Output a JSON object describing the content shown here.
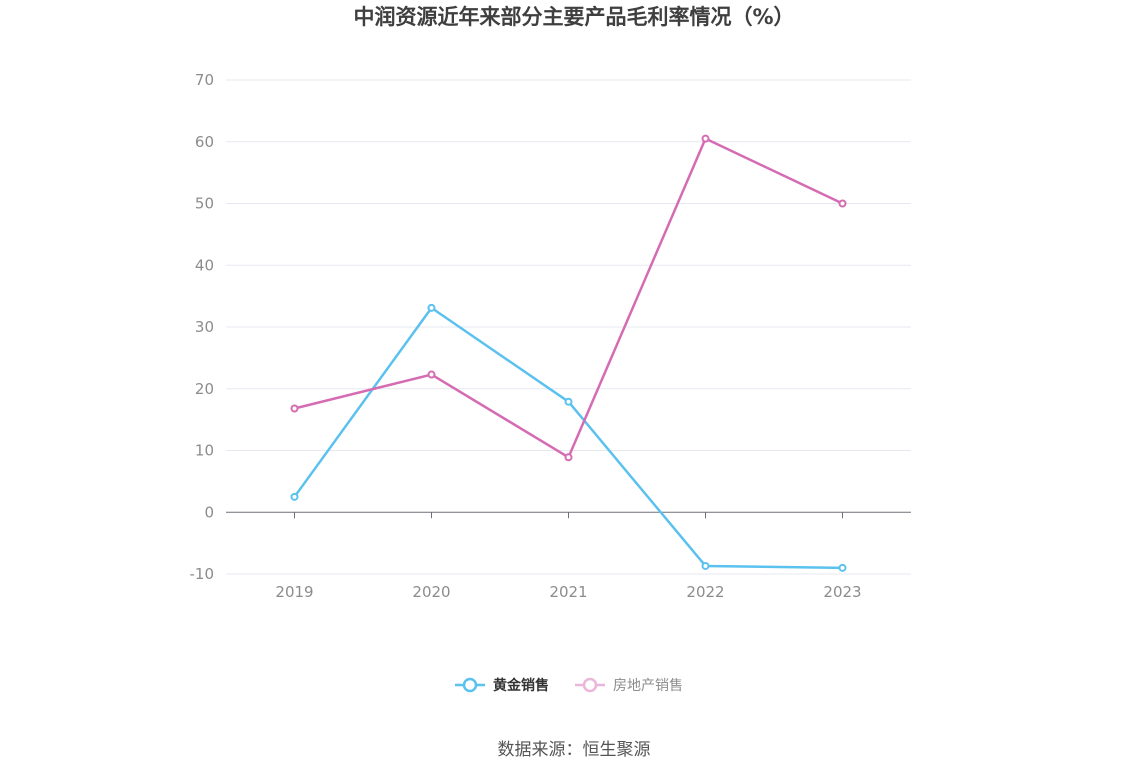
{
  "chart_data": {
    "type": "line",
    "title": "中润资源近年来部分主要产品毛利率情况（%）",
    "categories": [
      "2019",
      "2020",
      "2021",
      "2022",
      "2023"
    ],
    "series": [
      {
        "name": "黄金销售",
        "color": "#5bc1ee",
        "values": [
          2.5,
          33.1,
          17.9,
          -8.7,
          -9.0
        ]
      },
      {
        "name": "房地产销售",
        "color": "#d56cb3",
        "values": [
          16.8,
          22.3,
          8.9,
          60.5,
          50.0
        ]
      }
    ],
    "ylim": [
      -10,
      70
    ],
    "yticks": [
      "-10",
      "0",
      "10",
      "20",
      "30",
      "40",
      "50",
      "60",
      "70"
    ],
    "xlabel": "",
    "ylabel": "",
    "grid": true,
    "legend_position": "bottom-center"
  },
  "source": "数据来源：恒生聚源",
  "colors": {
    "grid": "#e6e8f0",
    "axis": "#6e7079",
    "tick_text": "#8c8c8c",
    "legend_text_active": "#333333",
    "legend_text_inactive": "#8c8c8c"
  }
}
